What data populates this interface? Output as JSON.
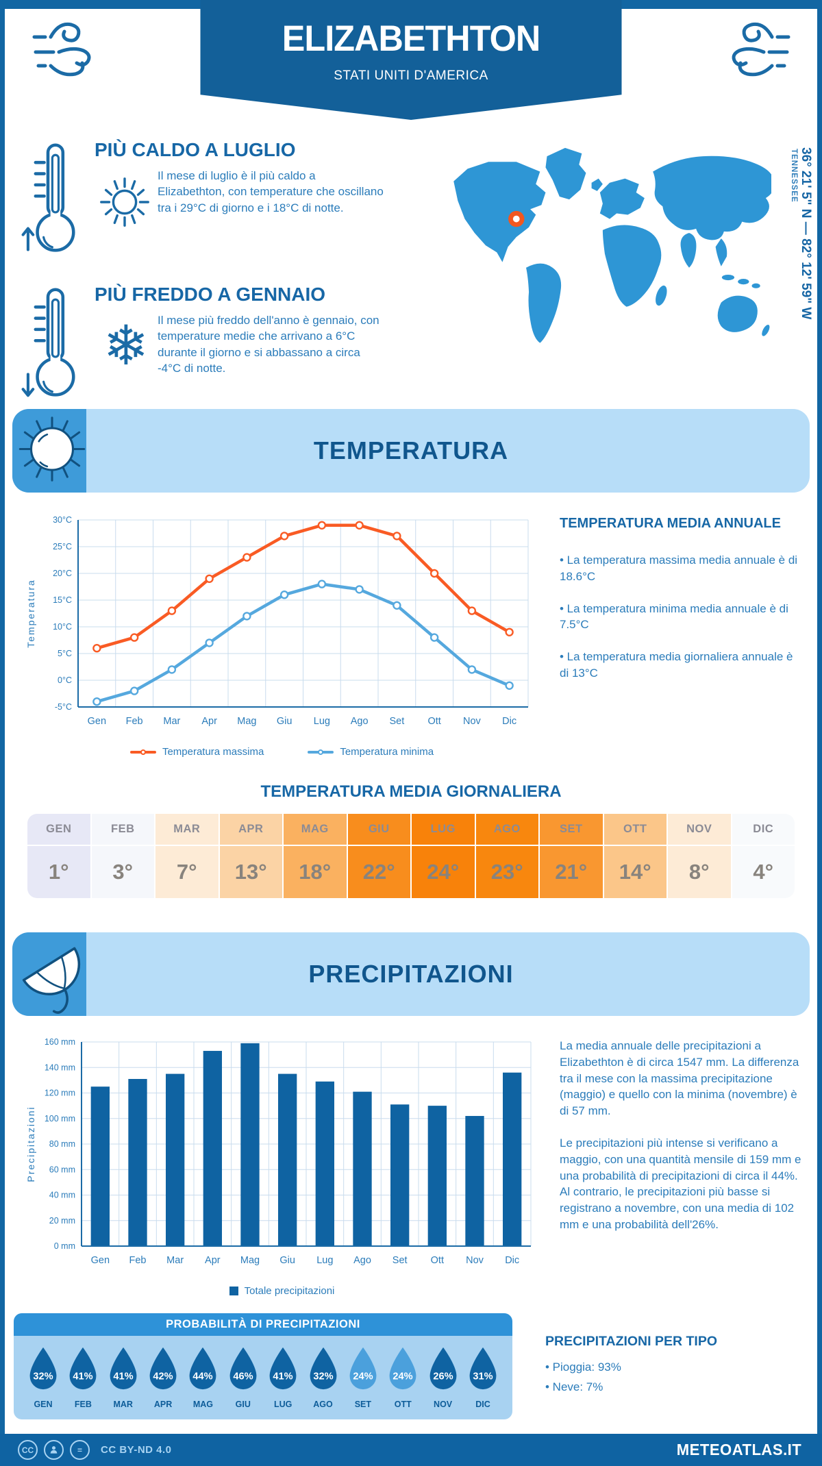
{
  "header": {
    "title": "ELIZABETHTON",
    "subtitle": "STATI UNITI D'AMERICA"
  },
  "highlights": [
    {
      "title": "PIÙ CALDO A LUGLIO",
      "icon": "sun-icon",
      "text": "Il mese di luglio è il più caldo a Elizabethton, con temperature che oscillano tra i 29°C di giorno e i 18°C di notte."
    },
    {
      "title": "PIÙ FREDDO A GENNAIO",
      "icon": "snowflake-icon",
      "text": "Il mese più freddo dell'anno è gennaio, con temperature medie che arrivano a 6°C durante il giorno e si abbassano a circa -4°C di notte."
    }
  ],
  "map": {
    "region_label": "TENNESSEE",
    "coordinates": "36° 21' 5\" N — 82° 12' 59\" W",
    "map_color": "#2e96d5",
    "marker_color": "#f2571f"
  },
  "temperature": {
    "band_title": "TEMPERATURA",
    "annual": {
      "title": "TEMPERATURA MEDIA ANNUALE",
      "bullets": [
        "La temperatura massima media annuale è di 18.6°C",
        "La temperatura minima media annuale è di 7.5°C",
        "La temperatura media giornaliera annuale è di 13°C"
      ]
    },
    "daily": {
      "title": "TEMPERATURA MEDIA GIORNALIERA",
      "months": [
        "GEN",
        "FEB",
        "MAR",
        "APR",
        "MAG",
        "GIU",
        "LUG",
        "AGO",
        "SET",
        "OTT",
        "NOV",
        "DIC"
      ],
      "values": [
        "1°",
        "3°",
        "7°",
        "13°",
        "18°",
        "22°",
        "24°",
        "23°",
        "21°",
        "14°",
        "8°",
        "4°"
      ],
      "cell_colors": [
        "#e7e8f6",
        "#f5f7fb",
        "#fdebd6",
        "#fbd3a5",
        "#fab160",
        "#f88d1d",
        "#f8820a",
        "#f8870e",
        "#f99730",
        "#fbc689",
        "#fdebd6",
        "#f8fafc"
      ]
    }
  },
  "precipitation": {
    "band_title": "PRECIPITAZIONI",
    "paragraphs": [
      "La media annuale delle precipitazioni a Elizabethton è di circa 1547 mm. La differenza tra il mese con la massima precipitazione (maggio) e quello con la minima (novembre) è di 57 mm.",
      "Le precipitazioni più intense si verificano a maggio, con una quantità mensile di 159 mm e una probabilità di precipitazioni di circa il 44%. Al contrario, le precipitazioni più basse si registrano a novembre, con una media di 102 mm e una probabilità dell'26%."
    ],
    "probability": {
      "title": "PROBABILITÀ DI PRECIPITAZIONI",
      "months": [
        "GEN",
        "FEB",
        "MAR",
        "APR",
        "MAG",
        "GIU",
        "LUG",
        "AGO",
        "SET",
        "OTT",
        "NOV",
        "DIC"
      ],
      "values": [
        "32%",
        "41%",
        "41%",
        "42%",
        "44%",
        "46%",
        "41%",
        "32%",
        "24%",
        "24%",
        "26%",
        "31%"
      ],
      "drop_colors": [
        "#0f63a2",
        "#0f63a2",
        "#0f63a2",
        "#0f63a2",
        "#0f63a2",
        "#0f63a2",
        "#0f63a2",
        "#0f63a2",
        "#4ba0dc",
        "#4ba0dc",
        "#0f63a2",
        "#0f63a2"
      ]
    },
    "by_type": {
      "title": "PRECIPITAZIONI PER TIPO",
      "bullets": [
        "Pioggia: 93%",
        "Neve: 7%"
      ]
    }
  },
  "footer": {
    "license": "CC BY-ND 4.0",
    "brand": "METEOATLAS.IT"
  },
  "chart_data": [
    {
      "type": "line",
      "categories": [
        "Gen",
        "Feb",
        "Mar",
        "Apr",
        "Mag",
        "Giu",
        "Lug",
        "Ago",
        "Set",
        "Ott",
        "Nov",
        "Dic"
      ],
      "series": [
        {
          "name": "Temperatura massima",
          "color": "#f95b24",
          "values": [
            6,
            8,
            13,
            19,
            23,
            27,
            29,
            29,
            27,
            20,
            13,
            9
          ]
        },
        {
          "name": "Temperatura minima",
          "color": "#55a8de",
          "values": [
            -4,
            -2,
            2,
            7,
            12,
            16,
            18,
            17,
            14,
            8,
            2,
            -1
          ]
        }
      ],
      "ylabel": "Temperatura",
      "ylim": [
        -5,
        30
      ],
      "ytick_step": 5,
      "ytick_suffix": "°C",
      "grid": true,
      "legend_position": "bottom"
    },
    {
      "type": "bar",
      "categories": [
        "Gen",
        "Feb",
        "Mar",
        "Apr",
        "Mag",
        "Giu",
        "Lug",
        "Ago",
        "Set",
        "Ott",
        "Nov",
        "Dic"
      ],
      "series": [
        {
          "name": "Totale precipitazioni",
          "color": "#0f63a2",
          "values": [
            125,
            131,
            135,
            153,
            159,
            135,
            129,
            121,
            111,
            110,
            102,
            136
          ]
        }
      ],
      "ylabel": "Precipitazioni",
      "ylim": [
        0,
        160
      ],
      "ytick_step": 20,
      "ytick_suffix": " mm",
      "grid": true,
      "legend_position": "bottom"
    }
  ]
}
